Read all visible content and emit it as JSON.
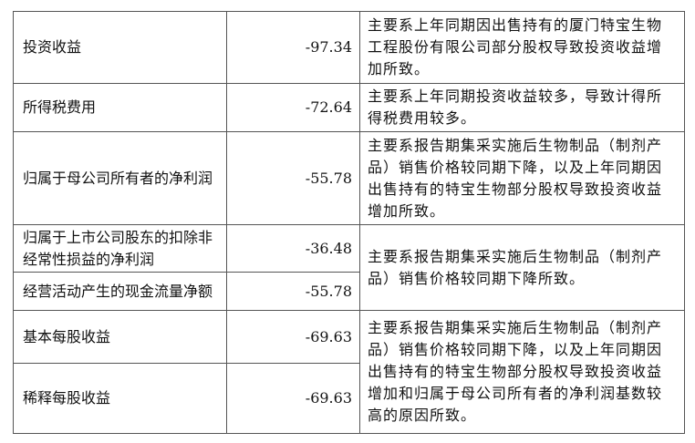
{
  "table": {
    "rows": [
      {
        "label": "投资收益",
        "change": "-97.34",
        "reason": [
          "主要系上年同期因出售持有的厦门特宝生物",
          "工程股份有限公司部分股权导致投资收益增",
          "加所致。"
        ]
      },
      {
        "label": "所得税费用",
        "change": "-72.64",
        "reason": [
          "主要系上年同期投资收益较多，导致计得所",
          "得税费用较多。"
        ]
      },
      {
        "label": "归属于母公司所有者的净利润",
        "change": "-55.78",
        "reason": [
          "主要系报告期集采实施后生物制品（制剂产",
          "品）销售价格较同期下降，以及上年同期因",
          "出售持有的特宝生物部分股权导致投资收益",
          "增加所致。"
        ]
      },
      {
        "label": [
          "归属于上市公司股东的扣除非",
          "经常性损益的净利润"
        ],
        "change": "-36.48",
        "reason": [
          "主要系报告期集采实施后生物制品（制剂产",
          "品）销售价格较同期下降所致。"
        ]
      },
      {
        "label": "经营活动产生的现金流量净额",
        "change": "-55.78"
      },
      {
        "label": "基本每股收益",
        "change": "-69.63",
        "reason": [
          "主要系报告期集采实施后生物制品（制剂产",
          "品）销售价格较同期下降，以及上年同期因",
          "出售持有的特宝生物部分股权导致投资收益",
          "增加和归属于母公司所有者的净利润基数较",
          "高的原因所致。"
        ]
      },
      {
        "label": "稀释每股收益",
        "change": "-69.63"
      }
    ]
  }
}
